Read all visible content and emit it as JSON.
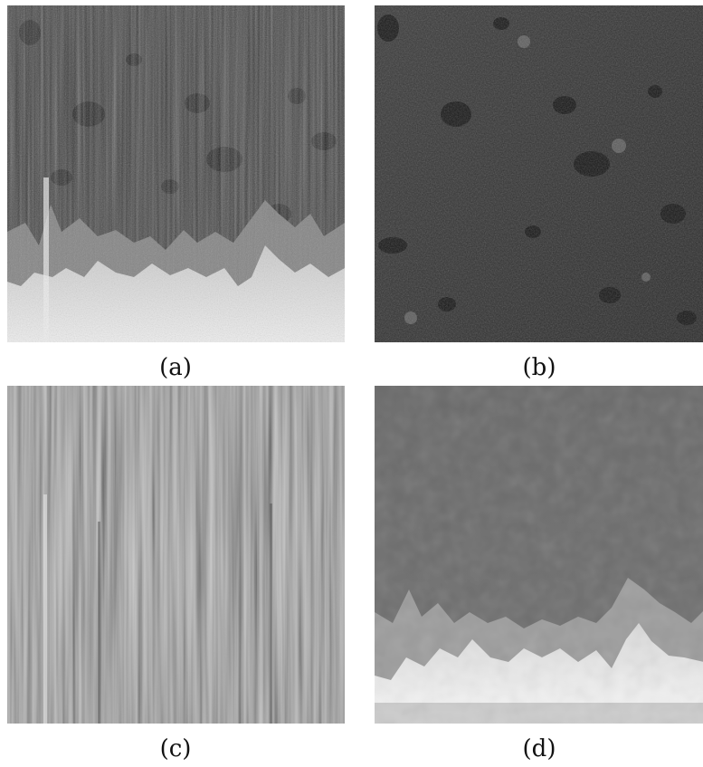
{
  "panels": [
    {
      "id": "a",
      "caption": "(a)"
    },
    {
      "id": "b",
      "caption": "(b)"
    },
    {
      "id": "c",
      "caption": "(c)"
    },
    {
      "id": "d",
      "caption": "(d)"
    }
  ],
  "colors": {
    "background": "#ffffff",
    "terrain_dark": "#2e2e2e",
    "streak_gray": "#9a9a9a",
    "smooth_gray": "#6e6e6e",
    "bright_band": "#e8e8e8"
  }
}
